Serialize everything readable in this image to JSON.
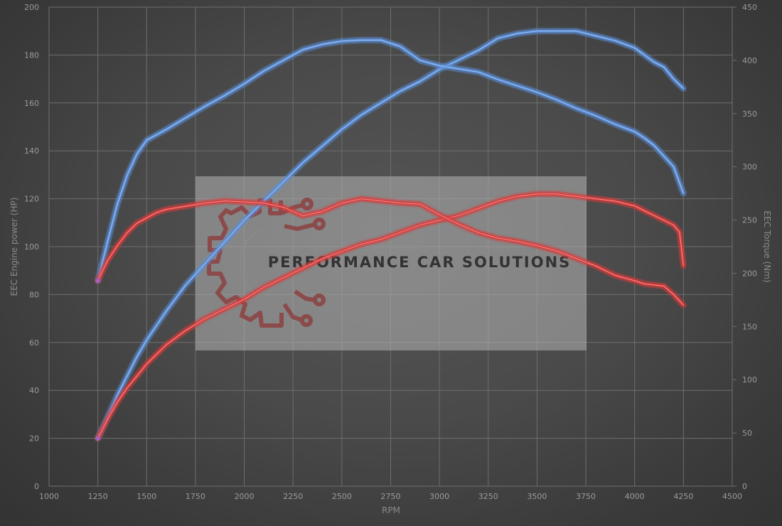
{
  "chart_data": {
    "type": "line",
    "xlabel": "RPM",
    "ylabel_left": "EEC Engine power (HP)",
    "ylabel_right": "EEC Torque (Nm)",
    "xlim": [
      1000,
      4500
    ],
    "ylim_left": [
      0,
      200
    ],
    "ylim_right": [
      0,
      450
    ],
    "x_ticks": [
      1000,
      1250,
      1500,
      1750,
      2000,
      2250,
      2500,
      2750,
      3000,
      3250,
      3500,
      3750,
      4000,
      4250,
      4500
    ],
    "y_ticks_left": [
      0,
      20,
      40,
      60,
      80,
      100,
      120,
      140,
      160,
      180,
      200
    ],
    "y_ticks_right": [
      0,
      50,
      100,
      150,
      200,
      250,
      300,
      350,
      400,
      450
    ],
    "grid": true,
    "series": [
      {
        "axis": "left",
        "color": "#5b8fd8",
        "x": [
          1250,
          1300,
          1350,
          1400,
          1450,
          1500,
          1600,
          1700,
          1800,
          1900,
          2000,
          2100,
          2200,
          2300,
          2400,
          2500,
          2600,
          2700,
          2800,
          2900,
          3000,
          3100,
          3200,
          3300,
          3400,
          3500,
          3600,
          3700,
          3800,
          3900,
          4000,
          4050,
          4100,
          4150,
          4200,
          4250
        ],
        "values": [
          20,
          29,
          38,
          46,
          54,
          61,
          73,
          84,
          93,
          102,
          111,
          119,
          127,
          135,
          142,
          149,
          155,
          160,
          165,
          169,
          174,
          178,
          182,
          187,
          189,
          190,
          190,
          190,
          188,
          186,
          183,
          180,
          177,
          175,
          170,
          166
        ]
      },
      {
        "axis": "right",
        "color": "#5b8fd8",
        "x": [
          1250,
          1300,
          1350,
          1400,
          1450,
          1500,
          1550,
          1600,
          1700,
          1800,
          1900,
          2000,
          2100,
          2200,
          2300,
          2400,
          2500,
          2600,
          2700,
          2800,
          2900,
          3000,
          3100,
          3200,
          3300,
          3400,
          3500,
          3600,
          3700,
          3800,
          3900,
          4000,
          4050,
          4100,
          4150,
          4200,
          4250
        ],
        "values": [
          193,
          230,
          265,
          292,
          312,
          325,
          330,
          335,
          346,
          357,
          367,
          378,
          390,
          400,
          410,
          415,
          418,
          419,
          419,
          413,
          400,
          395,
          392,
          389,
          382,
          376,
          370,
          363,
          355,
          348,
          340,
          333,
          327,
          320,
          310,
          300,
          275
        ]
      },
      {
        "axis": "left",
        "color": "#d83b3b",
        "x": [
          1250,
          1300,
          1350,
          1400,
          1450,
          1500,
          1600,
          1700,
          1800,
          1900,
          2000,
          2100,
          2200,
          2300,
          2400,
          2500,
          2600,
          2700,
          2800,
          2900,
          3000,
          3100,
          3200,
          3300,
          3400,
          3500,
          3600,
          3700,
          3800,
          3900,
          4000,
          4050,
          4100,
          4150,
          4200,
          4230,
          4250
        ],
        "values": [
          20,
          28,
          35,
          41,
          46,
          51,
          59,
          65,
          70,
          74,
          78,
          83,
          87,
          91,
          95,
          98,
          101,
          103,
          106,
          109,
          111,
          113,
          116,
          119,
          121,
          122,
          122,
          121,
          120,
          119,
          117,
          115,
          113,
          111,
          109,
          106,
          92
        ]
      },
      {
        "axis": "right",
        "color": "#d83b3b",
        "x": [
          1250,
          1300,
          1350,
          1400,
          1450,
          1500,
          1550,
          1600,
          1700,
          1800,
          1900,
          2000,
          2100,
          2200,
          2300,
          2400,
          2500,
          2600,
          2700,
          2800,
          2900,
          3000,
          3100,
          3200,
          3300,
          3400,
          3500,
          3600,
          3700,
          3800,
          3900,
          4000,
          4050,
          4100,
          4150,
          4200,
          4250
        ],
        "values": [
          193,
          212,
          226,
          238,
          247,
          252,
          257,
          260,
          263,
          266,
          268,
          267,
          266,
          262,
          254,
          258,
          266,
          270,
          268,
          266,
          265,
          255,
          246,
          238,
          233,
          230,
          226,
          221,
          214,
          207,
          198,
          193,
          190,
          189,
          188,
          180,
          170
        ]
      }
    ],
    "watermark": "PERFORMANCE CAR SOLUTIONS"
  }
}
